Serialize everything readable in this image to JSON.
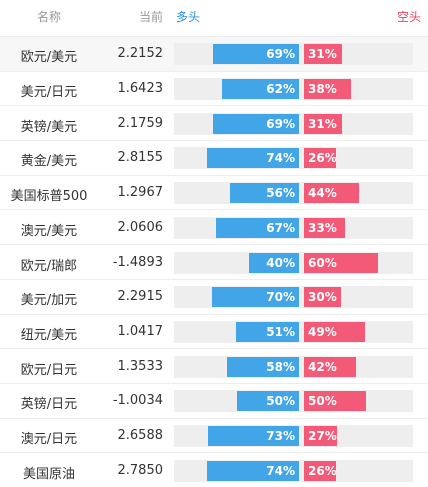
{
  "header": {
    "name": "名称",
    "price": "当前",
    "long": "多头",
    "short": "空头"
  },
  "rows": [
    {
      "name": "欧元/美元",
      "price": "2.2152",
      "long": 69,
      "long_label": "69%",
      "short": 31,
      "short_label": "31%"
    },
    {
      "name": "美元/日元",
      "price": "1.6423",
      "long": 62,
      "long_label": "62%",
      "short": 38,
      "short_label": "38%"
    },
    {
      "name": "英镑/美元",
      "price": "2.1759",
      "long": 69,
      "long_label": "69%",
      "short": 31,
      "short_label": "31%"
    },
    {
      "name": "黄金/美元",
      "price": "2.8155",
      "long": 74,
      "long_label": "74%",
      "short": 26,
      "short_label": "26%"
    },
    {
      "name": "美国标普500",
      "price": "1.2967",
      "long": 56,
      "long_label": "56%",
      "short": 44,
      "short_label": "44%"
    },
    {
      "name": "澳元/美元",
      "price": "2.0606",
      "long": 67,
      "long_label": "67%",
      "short": 33,
      "short_label": "33%"
    },
    {
      "name": "欧元/瑞郎",
      "price": "-1.4893",
      "long": 40,
      "long_label": "40%",
      "short": 60,
      "short_label": "60%"
    },
    {
      "name": "美元/加元",
      "price": "2.2915",
      "long": 70,
      "long_label": "70%",
      "short": 30,
      "short_label": "30%"
    },
    {
      "name": "纽元/美元",
      "price": "1.0417",
      "long": 51,
      "long_label": "51%",
      "short": 49,
      "short_label": "49%"
    },
    {
      "name": "欧元/日元",
      "price": "1.3533",
      "long": 58,
      "long_label": "58%",
      "short": 42,
      "short_label": "42%"
    },
    {
      "name": "英镑/日元",
      "price": "-1.0034",
      "long": 50,
      "long_label": "50%",
      "short": 50,
      "short_label": "50%"
    },
    {
      "name": "澳元/日元",
      "price": "2.6588",
      "long": 73,
      "long_label": "73%",
      "short": 27,
      "short_label": "27%"
    },
    {
      "name": "美国原油",
      "price": "2.7850",
      "long": 74,
      "long_label": "74%",
      "short": 26,
      "short_label": "26%"
    }
  ]
}
